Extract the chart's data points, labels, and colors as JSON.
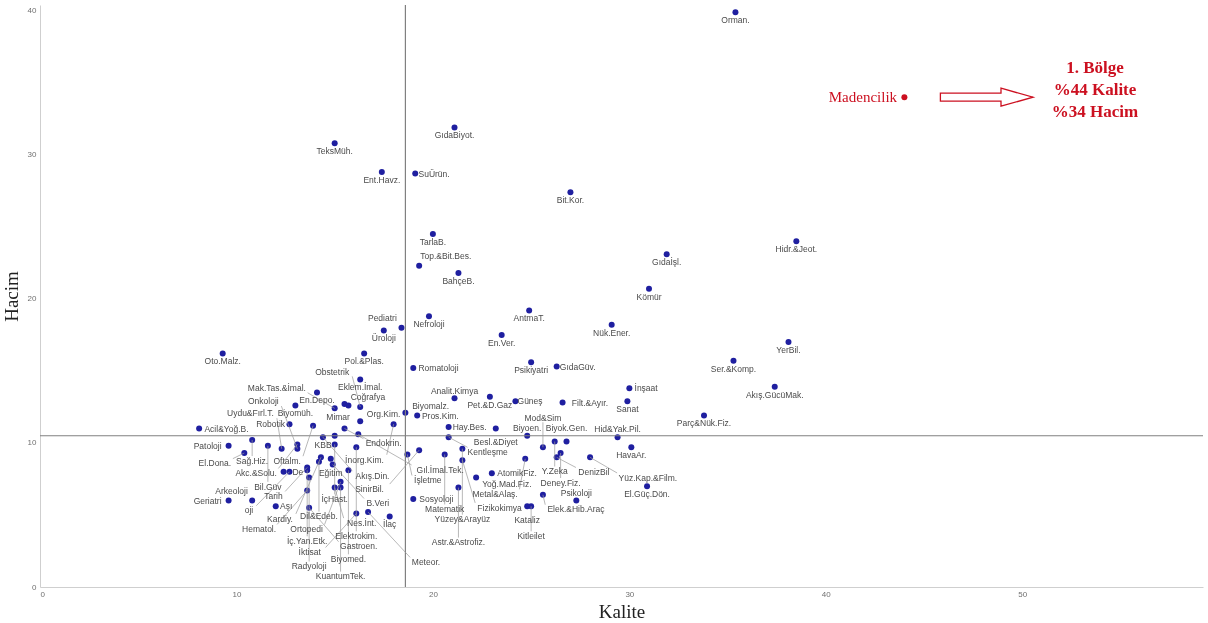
{
  "chart_data": {
    "type": "scatter",
    "xlabel": "Kalite",
    "ylabel": "Hacim",
    "xlim": [
      0,
      59.2
    ],
    "ylim": [
      0,
      40.4
    ],
    "xticks": [
      0,
      10,
      20,
      30,
      40,
      50
    ],
    "yticks": [
      0,
      10,
      20,
      30,
      40
    ],
    "marker": "circle",
    "ref_lines": [
      {
        "axis": "x",
        "value": 18.6,
        "color": "#808080"
      },
      {
        "axis": "y",
        "value": 10.5,
        "color": "#808080"
      }
    ],
    "annotations": [
      "1. Bölge\n%44 Kalite\n%34 Hacim"
    ],
    "series": [
      {
        "color": "#1f1fa0",
        "x": [
          35.4,
          15.0,
          21.1,
          17.4,
          19.1,
          27.0,
          20.0,
          19.3,
          21.3,
          31.9,
          38.5,
          31.0,
          19.8,
          24.9,
          29.1,
          18.4,
          17.5,
          23.5,
          38.1,
          16.5,
          9.3,
          35.3,
          25.0,
          26.3,
          19.0,
          16.3,
          37.4,
          30.0,
          14.1,
          22.9,
          21.1,
          29.9,
          24.2,
          26.6,
          15.5,
          15.7,
          13.0,
          16.3,
          15.0,
          18.6,
          33.8,
          19.2,
          16.3,
          12.7,
          18.0,
          13.9,
          20.8,
          23.2,
          15.5,
          8.1,
          16.2,
          15.0,
          24.8,
          14.4,
          20.8,
          29.4,
          10.8,
          26.8,
          26.2,
          13.1,
          15.0,
          9.6,
          11.6,
          30.1,
          25.6,
          16.1,
          12.3,
          13.1,
          19.3,
          26.5,
          10.4,
          18.7,
          20.6,
          26.3,
          28.0,
          14.3,
          24.7,
          14.8,
          21.5,
          14.2,
          14.9,
          13.6,
          13.6,
          15.7,
          12.4,
          12.7,
          23.0,
          13.7,
          22.2,
          15.3,
          30.9,
          21.5,
          21.3,
          15.0,
          15.3,
          13.6,
          25.6,
          19.0,
          9.6,
          10.8,
          27.3,
          12.0,
          24.8,
          25.0,
          13.7,
          16.1,
          16.7,
          17.8
        ],
        "values": [
          39.9,
          30.8,
          31.9,
          28.8,
          28.7,
          27.4,
          24.5,
          22.3,
          21.8,
          23.1,
          24.0,
          20.7,
          18.8,
          19.2,
          18.2,
          18.0,
          17.8,
          17.5,
          17.0,
          16.2,
          16.2,
          15.7,
          15.6,
          15.3,
          15.2,
          14.4,
          13.9,
          13.8,
          13.5,
          13.2,
          13.1,
          12.9,
          12.9,
          12.8,
          12.7,
          12.6,
          12.6,
          12.5,
          12.4,
          12.1,
          11.9,
          11.9,
          11.5,
          11.3,
          11.3,
          11.2,
          11.1,
          11.0,
          11.0,
          11.0,
          10.6,
          10.5,
          10.5,
          10.4,
          10.4,
          10.4,
          10.2,
          10.1,
          10.1,
          9.9,
          9.9,
          9.8,
          9.8,
          9.7,
          9.7,
          9.7,
          9.6,
          9.6,
          9.5,
          9.3,
          9.3,
          9.2,
          9.2,
          9.0,
          9.0,
          9.0,
          8.9,
          8.9,
          8.8,
          8.7,
          8.5,
          8.3,
          8.1,
          8.1,
          8.0,
          8.0,
          7.9,
          7.6,
          7.6,
          7.3,
          7.0,
          9.6,
          6.9,
          6.9,
          6.9,
          6.7,
          6.4,
          6.1,
          6.0,
          6.0,
          6.0,
          5.6,
          5.6,
          5.6,
          5.5,
          5.1,
          5.2,
          4.9
        ],
        "value_labels": [
          "Orman.",
          "TeksMüh.",
          "GıdaBiyot.",
          "Ent.Havz.",
          "SuÜrün.",
          "Bit.Kor.",
          "TarlaB.",
          "Top.&Bit.Bes.",
          "BahçeB.",
          "Gıdaİşl.",
          "Hidr.&Jeot.",
          "Kömür",
          "Nefroloji",
          "AntmaT.",
          "Nük.Ener.",
          "Pediatri",
          "Üroloji",
          "En.Ver.",
          "YerBil.",
          "Pol.&Plas.",
          "Oto.Malz.",
          "Ser.&Komp.",
          "Psikiyatri",
          "GıdaGüv.",
          "Romatoloji",
          "Eklem.İmal.",
          "Akış.GücüMak.",
          "İnşaat",
          "En.Depo.",
          "Pet.&D.Gaz",
          "Analit.Kimya",
          "Sanat",
          "Güneş",
          "Filt.&Ayır.",
          "Coğrafya",
          "Mimar",
          "Biyomüh.",
          "Obstetrik",
          "Mak.Tas.&İmal.",
          "Biyomalz.",
          "Parç&Nük.Fiz.",
          "Pros.Kim.",
          "Org.Kim.",
          "Robotik",
          "İnorg.Kim.",
          "Oftalm.",
          "Hay.Bes.",
          "Besl.&Diyet",
          "Endokrin.",
          "Acil&Yoğ.B.",
          "Gıl.İmal.Tek.",
          "KBB",
          "Biyoen.",
          "Akış.Din.",
          "Kentleşme",
          "Hid&Yak.Pil.",
          "Sağ.Hiz.",
          "Biyok.Gen.",
          "Y.Zeka",
          "Akc.&Solu.",
          "İçHast.",
          "Patoloji",
          "Bil.Güv",
          "HavaAr.",
          "Mod&Sim",
          "Elektrokim.",
          "Uydu&Fırl.T.",
          "Onkoloji",
          "SinirBil.",
          "Deney.Fiz.",
          "El.Dona.",
          "İşletme",
          "Matematik",
          "DenizBil",
          "Yüz.Kap.&Film.",
          "Kardiy.",
          "Metal&Alaş.",
          "Eğitim",
          "Fizikokimya",
          "Dil&Edeb.",
          "B.Veri",
          "Tarih",
          "İç.Yan.Etk.",
          "Biyomed.",
          "De",
          "oji",
          "AtomikFiz.",
          "Radyoloji",
          "Yoğ.Mad.Fiz.",
          "Ortopedi",
          "El.Güç.Dön.",
          "Yüzey&Arayüz",
          "Astr.&Astrofiz.",
          "Nes.İnt.",
          "KuantumTek.",
          "Hematol.",
          "Elek.&Hib.Araç",
          "Sosyoloji",
          "Geriatri",
          "Arkeoloji",
          "Psikoloji",
          "Aşı",
          "Kataliz",
          "Kitleilet",
          "Gastroen.",
          "İktisat",
          "Meteor.",
          "İlaç"
        ]
      },
      {
        "color": "#cc1020",
        "x": [
          44.0
        ],
        "values": [
          34.0
        ],
        "value_labels": [
          "Madencilik"
        ]
      }
    ]
  }
}
